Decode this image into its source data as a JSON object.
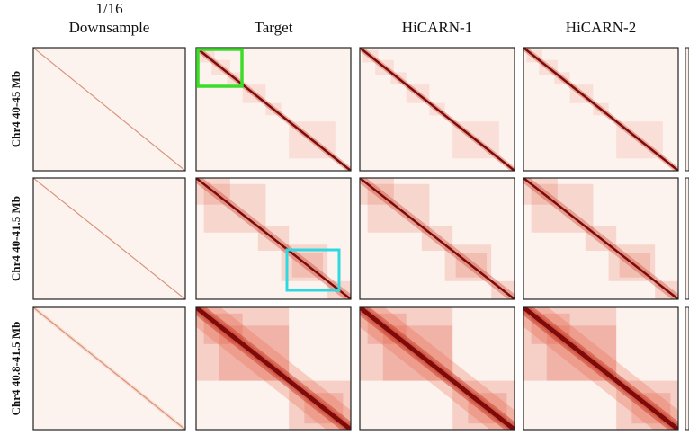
{
  "header": {
    "columns": [
      [
        "1/16",
        "Downsample"
      ],
      [
        "Target"
      ],
      [
        "HiCARN-1"
      ],
      [
        "HiCARN-2"
      ]
    ]
  },
  "rows": [
    "Chr4 40-45 Mb",
    "Chr4 40-41.5 Mb",
    "Chr4 40.8-41.5 Mb"
  ]
}
